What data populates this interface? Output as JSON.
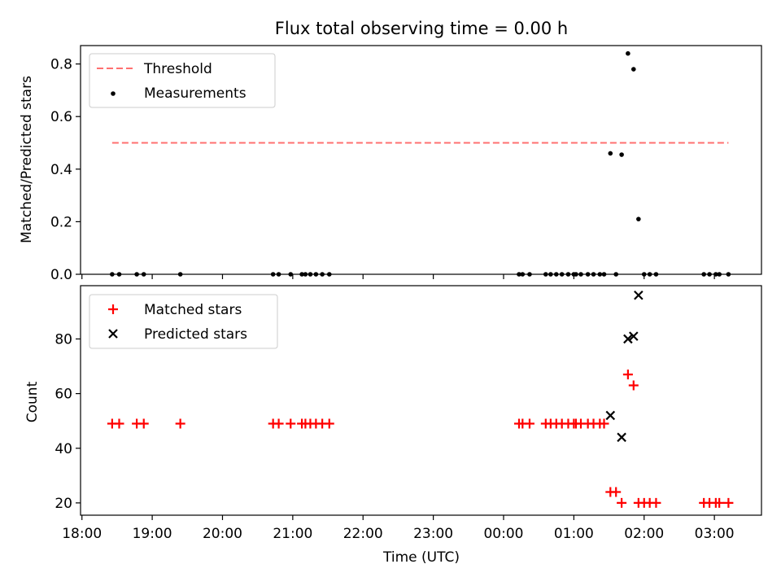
{
  "chart_data": [
    {
      "type": "scatter",
      "title": "Flux total observing time = 0.00 h",
      "xlabel": "",
      "ylabel": "Matched/Predicted stars",
      "ylim": [
        0,
        0.87
      ],
      "yticks": [
        "0.0",
        "0.2",
        "0.4",
        "0.6",
        "0.8"
      ],
      "ytick_values": [
        0,
        0.2,
        0.4,
        0.6,
        0.8
      ],
      "legend_position": "upper-left",
      "threshold": {
        "name": "Threshold",
        "value": 0.5,
        "x_start_h": 18.43,
        "x_end_h": 27.2,
        "color": "#ff7070",
        "style": "dashed"
      },
      "series": [
        {
          "name": "Measurements",
          "color": "#000000",
          "marker": "dot",
          "points": [
            [
              18.43,
              0
            ],
            [
              18.53,
              0
            ],
            [
              18.78,
              0
            ],
            [
              18.88,
              0
            ],
            [
              19.4,
              0
            ],
            [
              20.72,
              0
            ],
            [
              20.8,
              0
            ],
            [
              20.97,
              0
            ],
            [
              21.13,
              0
            ],
            [
              21.18,
              0
            ],
            [
              21.25,
              0
            ],
            [
              21.33,
              0
            ],
            [
              21.42,
              0
            ],
            [
              21.52,
              0
            ],
            [
              24.22,
              0
            ],
            [
              24.27,
              0
            ],
            [
              24.37,
              0
            ],
            [
              24.6,
              0
            ],
            [
              24.67,
              0
            ],
            [
              24.75,
              0
            ],
            [
              24.83,
              0
            ],
            [
              24.92,
              0
            ],
            [
              25.0,
              0
            ],
            [
              25.03,
              0
            ],
            [
              25.1,
              0
            ],
            [
              25.2,
              0
            ],
            [
              25.28,
              0
            ],
            [
              25.37,
              0
            ],
            [
              25.43,
              0
            ],
            [
              25.52,
              0.46
            ],
            [
              25.6,
              0
            ],
            [
              25.68,
              0.455
            ],
            [
              25.77,
              0.84
            ],
            [
              25.85,
              0.78
            ],
            [
              25.92,
              0.21
            ],
            [
              26.0,
              0
            ],
            [
              26.08,
              0
            ],
            [
              26.17,
              0
            ],
            [
              26.85,
              0
            ],
            [
              26.93,
              0
            ],
            [
              27.02,
              0
            ],
            [
              27.07,
              0
            ],
            [
              27.2,
              0
            ]
          ]
        }
      ]
    },
    {
      "type": "scatter",
      "title": "",
      "xlabel": "Time (UTC)",
      "ylabel": "Count",
      "ylim": [
        15.5,
        99.5
      ],
      "yticks": [
        "20",
        "40",
        "60",
        "80"
      ],
      "ytick_values": [
        20,
        40,
        60,
        80
      ],
      "xlim_h": [
        17.98,
        27.67
      ],
      "xticks": [
        "18:00",
        "19:00",
        "20:00",
        "21:00",
        "22:00",
        "23:00",
        "00:00",
        "01:00",
        "02:00",
        "03:00"
      ],
      "xtick_values_h": [
        18,
        19,
        20,
        21,
        22,
        23,
        24,
        25,
        26,
        27
      ],
      "legend_position": "upper-left",
      "series": [
        {
          "name": "Matched stars",
          "color": "#ff0000",
          "marker": "plus",
          "points": [
            [
              18.43,
              49
            ],
            [
              18.53,
              49
            ],
            [
              18.78,
              49
            ],
            [
              18.88,
              49
            ],
            [
              19.4,
              49
            ],
            [
              20.72,
              49
            ],
            [
              20.8,
              49
            ],
            [
              20.97,
              49
            ],
            [
              21.13,
              49
            ],
            [
              21.18,
              49
            ],
            [
              21.25,
              49
            ],
            [
              21.33,
              49
            ],
            [
              21.42,
              49
            ],
            [
              21.52,
              49
            ],
            [
              24.22,
              49
            ],
            [
              24.27,
              49
            ],
            [
              24.37,
              49
            ],
            [
              24.6,
              49
            ],
            [
              24.67,
              49
            ],
            [
              24.75,
              49
            ],
            [
              24.83,
              49
            ],
            [
              24.92,
              49
            ],
            [
              25.0,
              49
            ],
            [
              25.03,
              49
            ],
            [
              25.1,
              49
            ],
            [
              25.2,
              49
            ],
            [
              25.28,
              49
            ],
            [
              25.37,
              49
            ],
            [
              25.43,
              49
            ],
            [
              25.52,
              24
            ],
            [
              25.6,
              24
            ],
            [
              25.68,
              20
            ],
            [
              25.77,
              67
            ],
            [
              25.85,
              63
            ],
            [
              25.92,
              20
            ],
            [
              26.0,
              20
            ],
            [
              26.08,
              20
            ],
            [
              26.17,
              20
            ],
            [
              26.85,
              20
            ],
            [
              26.93,
              20
            ],
            [
              27.02,
              20
            ],
            [
              27.07,
              20
            ],
            [
              27.2,
              20
            ]
          ]
        },
        {
          "name": "Predicted stars",
          "color": "#000000",
          "marker": "cross",
          "points": [
            [
              25.52,
              52
            ],
            [
              25.68,
              44
            ],
            [
              25.77,
              80
            ],
            [
              25.85,
              81
            ],
            [
              25.92,
              96
            ]
          ]
        }
      ]
    }
  ]
}
